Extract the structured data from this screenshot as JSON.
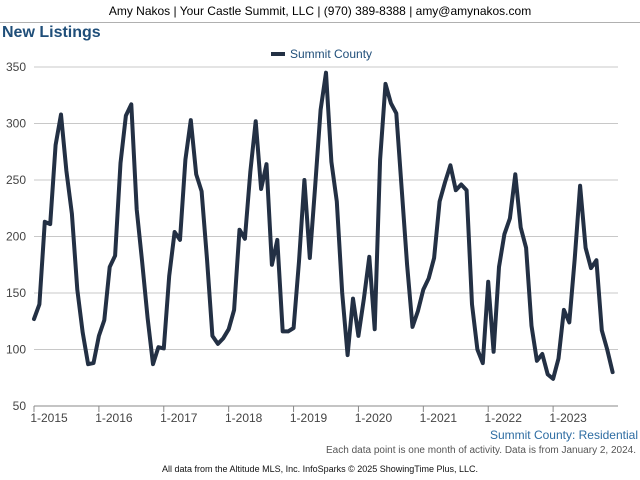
{
  "header": {
    "text": "Amy Nakos | Your Castle Summit, LLC | (970) 389-8388 | amy@amynakos.com"
  },
  "page_title": "New Listings",
  "caption": "Summit County: Residential",
  "note": "Each data point is one month of activity. Data is from January 2, 2024.",
  "footer": "All data from the Altitude MLS, Inc. InfoSparks © 2025 ShowingTime Plus, LLC.",
  "colors": {
    "series": "#233044",
    "title": "#1f4e79",
    "caption": "#2d6ca2",
    "grid": "#c8c8c8"
  },
  "chart_data": {
    "type": "line",
    "title": "New Listings",
    "xlabel": "",
    "ylabel": "",
    "ylim": [
      50,
      350
    ],
    "yticks": [
      50,
      100,
      150,
      200,
      250,
      300,
      350
    ],
    "xticks": [
      "1-2015",
      "1-2016",
      "1-2017",
      "1-2018",
      "1-2019",
      "1-2020",
      "1-2021",
      "1-2022",
      "1-2023"
    ],
    "x_start": "2015-01",
    "x_end": "2023-12",
    "legend": "top-center",
    "grid": true,
    "series": [
      {
        "name": "Summit County",
        "values": [
          127,
          140,
          213,
          211,
          281,
          308,
          258,
          220,
          153,
          115,
          87,
          88,
          112,
          126,
          173,
          183,
          265,
          307,
          317,
          224,
          178,
          128,
          87,
          102,
          101,
          165,
          204,
          197,
          268,
          303,
          255,
          240,
          180,
          112,
          105,
          110,
          118,
          135,
          206,
          198,
          257,
          302,
          242,
          264,
          175,
          197,
          116,
          116,
          119,
          178,
          250,
          181,
          245,
          312,
          345,
          266,
          231,
          150,
          95,
          145,
          112,
          145,
          182,
          118,
          268,
          335,
          318,
          309,
          242,
          175,
          120,
          134,
          153,
          163,
          181,
          231,
          248,
          263,
          241,
          246,
          241,
          140,
          100,
          88,
          160,
          98,
          173,
          202,
          216,
          255,
          208,
          190,
          121,
          90,
          96,
          78,
          74,
          92,
          135,
          124,
          180,
          245,
          190,
          172,
          179,
          117,
          100,
          80
        ]
      }
    ]
  }
}
